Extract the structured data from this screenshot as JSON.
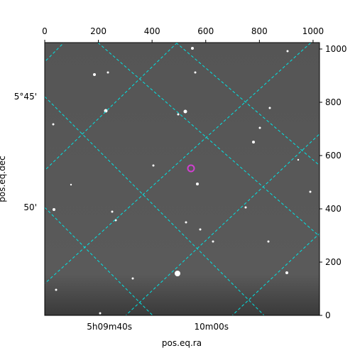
{
  "chart_data": {
    "type": "image",
    "xlabel": "pos.eq.ra",
    "ylabel": "pos.eq.dec",
    "xlim": [
      0,
      1024
    ],
    "ylim": [
      0,
      1024
    ],
    "xticks": [
      0,
      200,
      400,
      600,
      800,
      1000
    ],
    "yticks": [
      0,
      200,
      400,
      600,
      800,
      1000
    ],
    "ra_ticks": [
      "5h09m40s",
      "10m00s"
    ],
    "dec_ticks": [
      "5°45'",
      "50'"
    ],
    "grid": true,
    "grid_color": "#00e5e5"
  }
}
